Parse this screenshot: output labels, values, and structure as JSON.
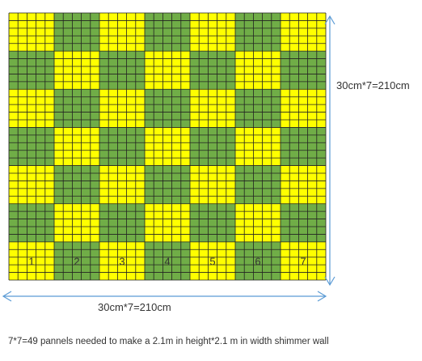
{
  "wall": {
    "panels_per_side": 7,
    "cells_per_panel": 5,
    "colors": {
      "yellow": "#FFFF00",
      "green": "#70AD47",
      "grid": "#222222",
      "arrow": "#5B9BD5"
    },
    "column_numbers": [
      "1",
      "2",
      "3",
      "4",
      "5",
      "6",
      "7"
    ]
  },
  "labels": {
    "vertical_dimension": "30cm*7=210cm",
    "horizontal_dimension": "30cm*7=210cm"
  },
  "caption": "7*7=49 pannels needed to make a 2.1m in height*2.1 m in width shimmer wall"
}
